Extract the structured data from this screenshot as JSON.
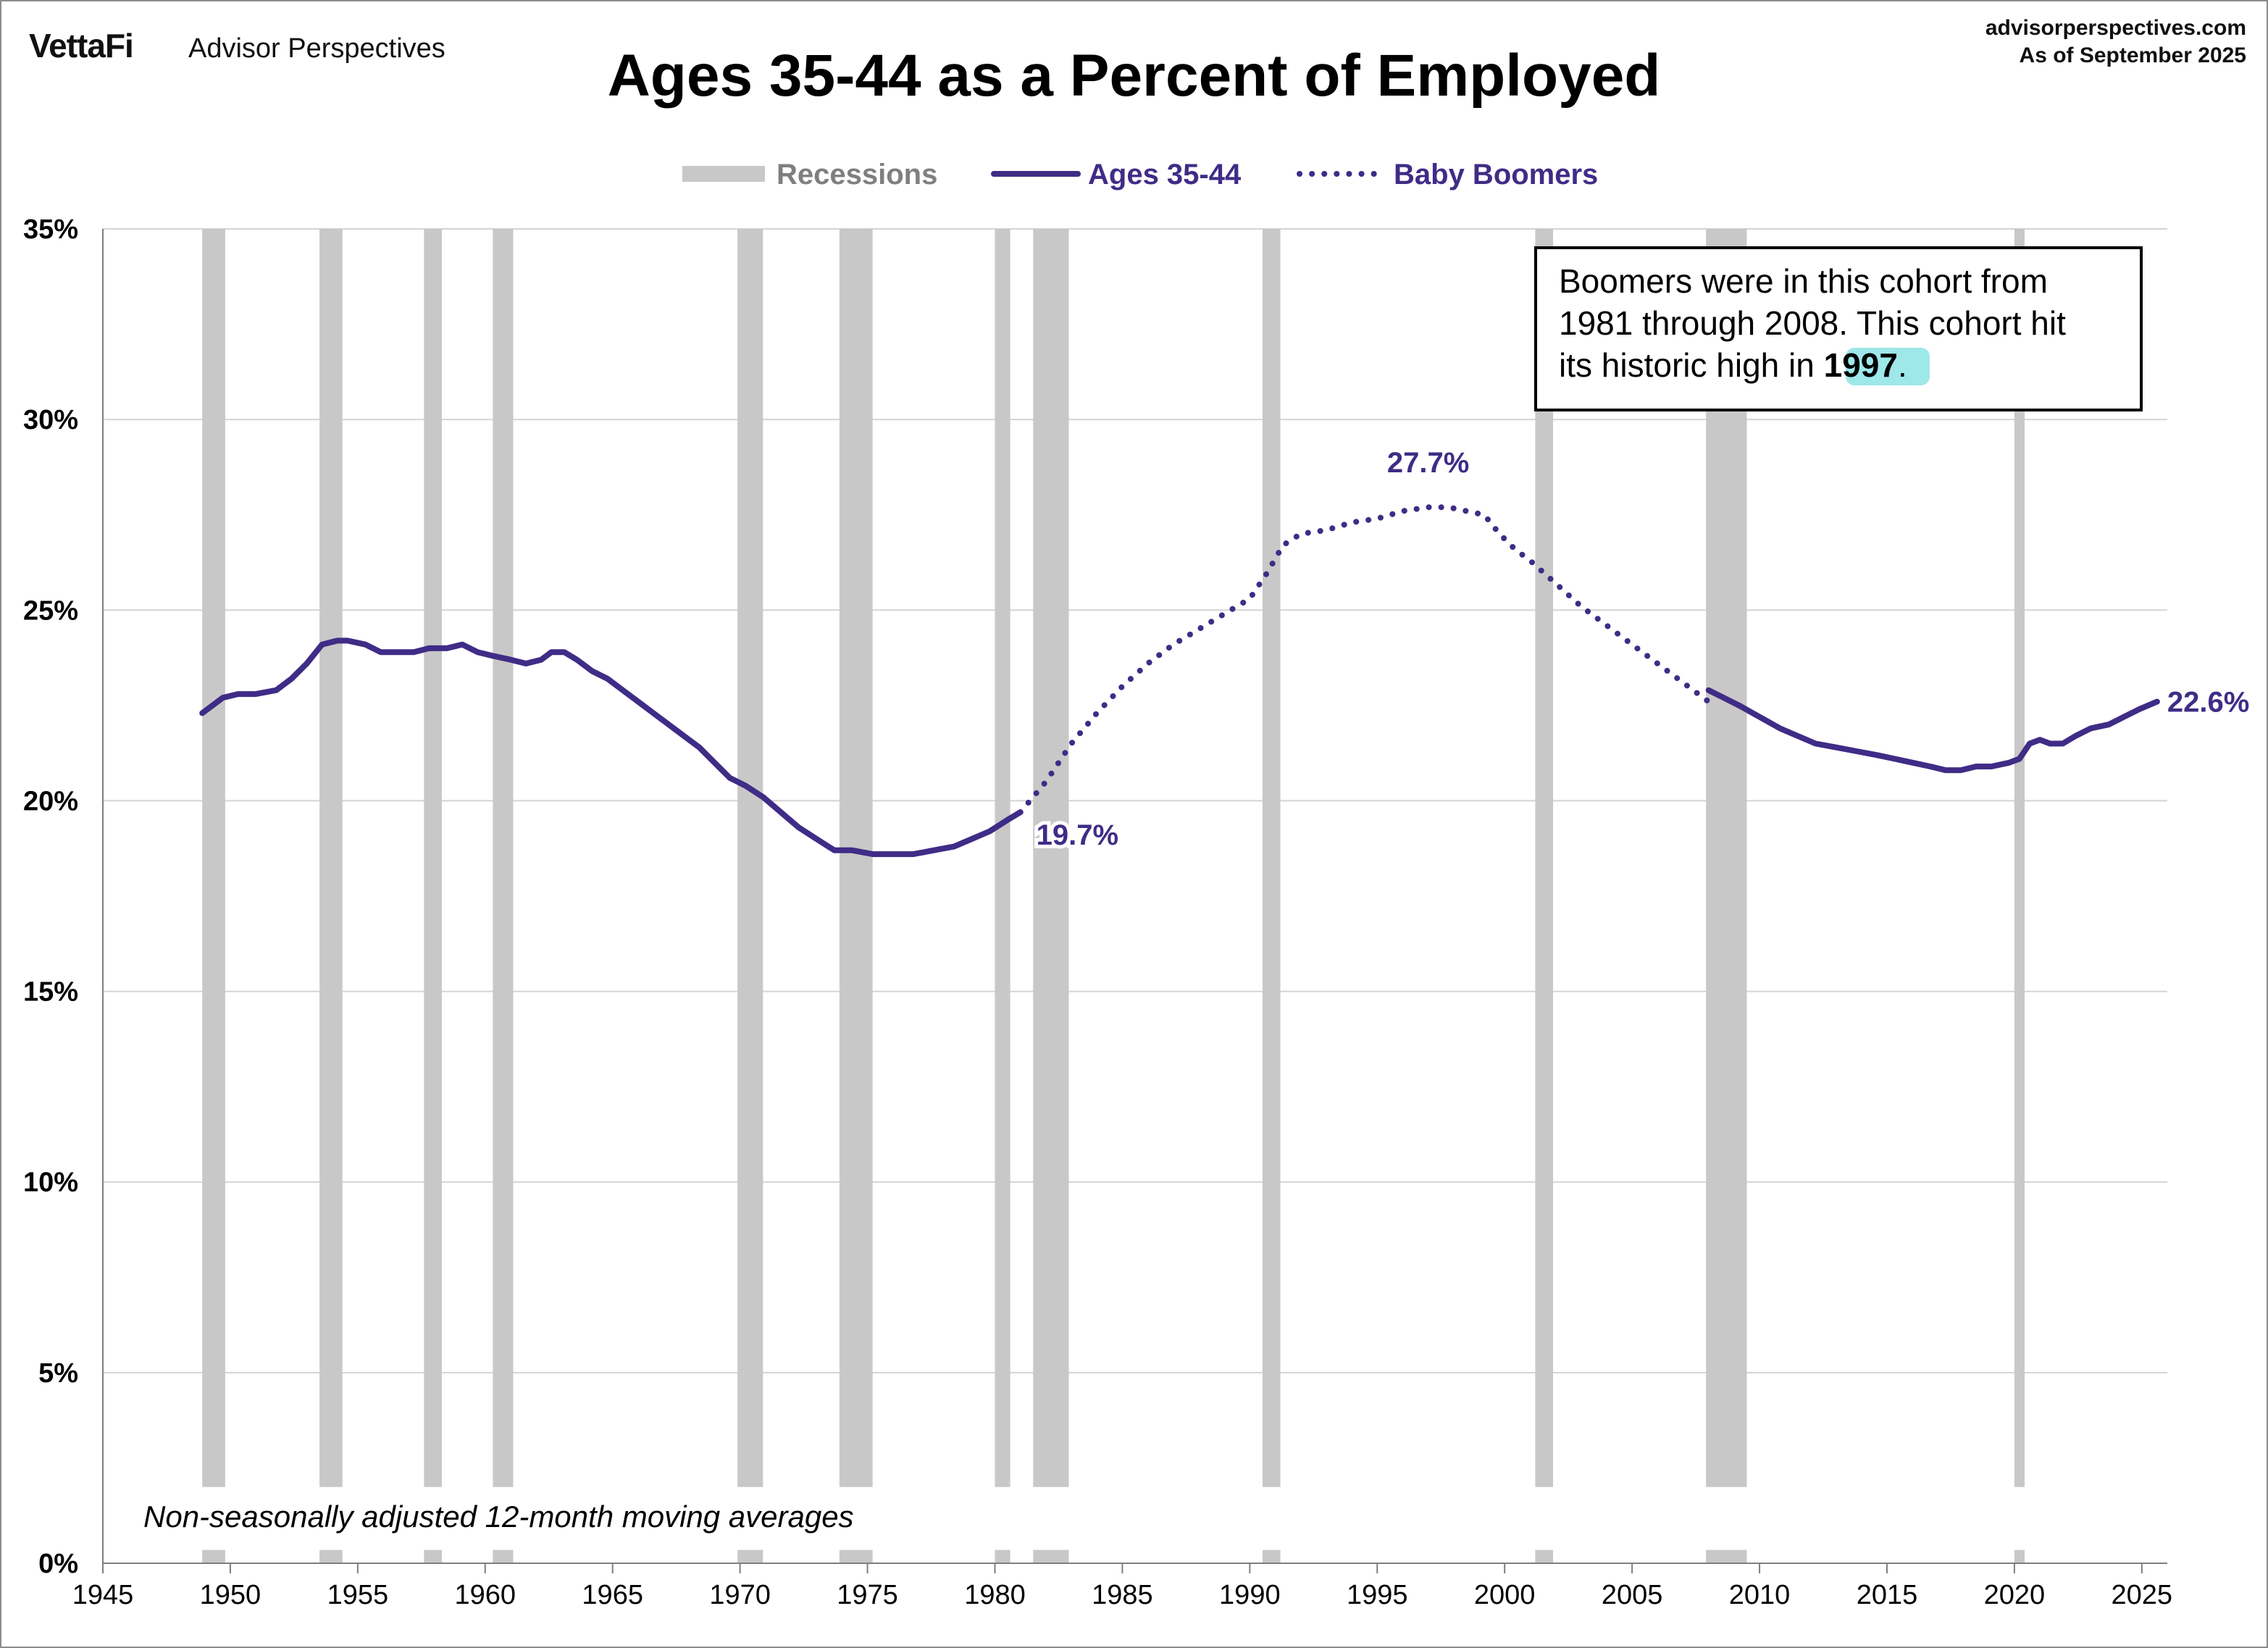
{
  "header": {
    "brand": "VettaFi",
    "brand_sub": "Advisor Perspectives",
    "source": "advisorperspectives.com",
    "as_of": "As of September 2025"
  },
  "chart_data": {
    "type": "line",
    "title": "Ages 35-44 as a Percent of Employed",
    "xlabel": "",
    "ylabel": "",
    "xlim": [
      1945,
      2026
    ],
    "ylim": [
      0,
      35
    ],
    "x_ticks": [
      "1945",
      "1950",
      "1955",
      "1960",
      "1965",
      "1970",
      "1975",
      "1980",
      "1985",
      "1990",
      "1995",
      "2000",
      "2005",
      "2010",
      "2015",
      "2020",
      "2025"
    ],
    "y_ticks": [
      "0%",
      "5%",
      "10%",
      "15%",
      "20%",
      "25%",
      "30%",
      "35%"
    ],
    "grid": true,
    "legend": {
      "placement": "top-center",
      "entries": [
        "Recessions",
        "Ages 35-44",
        "Baby Boomers"
      ]
    },
    "series": [
      {
        "name": "Ages 35-44",
        "style": "solid",
        "color": "#3f2c86",
        "x": [
          1948.9,
          1949.3,
          1949.7,
          1950.3,
          1951.0,
          1951.8,
          1952.4,
          1953.0,
          1953.6,
          1954.2,
          1954.6,
          1955.3,
          1955.9,
          1956.5,
          1957.2,
          1957.8,
          1958.5,
          1959.1,
          1959.7,
          1960.3,
          1961.0,
          1961.6,
          1962.2,
          1962.6,
          1963.1,
          1963.6,
          1964.2,
          1964.8,
          1965.4,
          1966.0,
          1966.6,
          1967.2,
          1967.8,
          1968.4,
          1969.0,
          1969.6,
          1970.2,
          1970.9,
          1971.6,
          1972.3,
          1973.0,
          1973.7,
          1974.4,
          1975.2,
          1976.0,
          1976.8,
          1977.6,
          1978.4,
          1979.1,
          1979.8,
          1980.5,
          1981.0
        ],
        "values": [
          22.3,
          22.5,
          22.7,
          22.8,
          22.8,
          22.9,
          23.2,
          23.6,
          24.1,
          24.2,
          24.2,
          24.1,
          23.9,
          23.9,
          23.9,
          24.0,
          24.0,
          24.1,
          23.9,
          23.8,
          23.7,
          23.6,
          23.7,
          23.9,
          23.9,
          23.7,
          23.4,
          23.2,
          22.9,
          22.6,
          22.3,
          22.0,
          21.7,
          21.4,
          21.0,
          20.6,
          20.4,
          20.1,
          19.7,
          19.3,
          19.0,
          18.7,
          18.7,
          18.6,
          18.6,
          18.6,
          18.7,
          18.8,
          19.0,
          19.2,
          19.5,
          19.7
        ]
      },
      {
        "name": "Baby Boomers",
        "style": "dotted",
        "color": "#3f2c86",
        "x": [
          1981.0,
          1982.0,
          1983.0,
          1984.0,
          1985.0,
          1986.0,
          1987.0,
          1988.0,
          1989.0,
          1990.0,
          1990.7,
          1991.3,
          1992.0,
          1993.0,
          1994.0,
          1995.0,
          1996.0,
          1997.0,
          1997.8,
          1998.5,
          1999.2,
          1999.8,
          2000.4,
          2001.0,
          2002.0,
          2003.0,
          2004.0,
          2005.0,
          2006.0,
          2007.0,
          2008.0
        ],
        "values": [
          19.7,
          20.5,
          21.5,
          22.3,
          23.0,
          23.6,
          24.1,
          24.5,
          24.9,
          25.3,
          26.0,
          26.7,
          27.0,
          27.1,
          27.3,
          27.4,
          27.6,
          27.7,
          27.7,
          27.6,
          27.5,
          27.0,
          26.6,
          26.3,
          25.7,
          25.1,
          24.6,
          24.1,
          23.6,
          23.1,
          22.6
        ]
      },
      {
        "name": "Ages 35-44",
        "style": "solid",
        "color": "#3f2c86",
        "x": [
          2008.0,
          2008.6,
          2009.2,
          2010.0,
          2010.8,
          2011.5,
          2012.2,
          2013.0,
          2013.8,
          2014.6,
          2015.3,
          2016.0,
          2016.7,
          2017.3,
          2017.9,
          2018.5,
          2019.1,
          2019.8,
          2020.2,
          2020.6,
          2021.0,
          2021.4,
          2021.9,
          2022.4,
          2023.0,
          2023.7,
          2024.3,
          2024.9,
          2025.6
        ],
        "values": [
          22.9,
          22.7,
          22.5,
          22.2,
          21.9,
          21.7,
          21.5,
          21.4,
          21.3,
          21.2,
          21.1,
          21.0,
          20.9,
          20.8,
          20.8,
          20.9,
          20.9,
          21.0,
          21.1,
          21.5,
          21.6,
          21.5,
          21.5,
          21.7,
          21.9,
          22.0,
          22.2,
          22.4,
          22.6
        ]
      }
    ],
    "recessions": [
      [
        1948.9,
        1949.8
      ],
      [
        1953.5,
        1954.4
      ],
      [
        1957.6,
        1958.3
      ],
      [
        1960.3,
        1961.1
      ],
      [
        1969.9,
        1970.9
      ],
      [
        1973.9,
        1975.2
      ],
      [
        1980.0,
        1980.6
      ],
      [
        1981.5,
        1982.9
      ],
      [
        1990.5,
        1991.2
      ],
      [
        2001.2,
        2001.9
      ],
      [
        2007.9,
        2009.5
      ],
      [
        2020.0,
        2020.4
      ]
    ],
    "annotations": [
      {
        "text": "19.7%",
        "x": 1981.0,
        "y": 19.7
      },
      {
        "text": "27.7%",
        "x": 1997.0,
        "y": 27.7
      },
      {
        "text": "22.6%",
        "x": 2025.6,
        "y": 22.6
      }
    ],
    "note": "Non-seasonally adjusted  12-month moving averages",
    "callout": {
      "text_before": "Boomers were in this cohort from 1981 through 2008. This cohort hit its historic high in ",
      "highlight": "1997",
      "text_after": "."
    }
  }
}
